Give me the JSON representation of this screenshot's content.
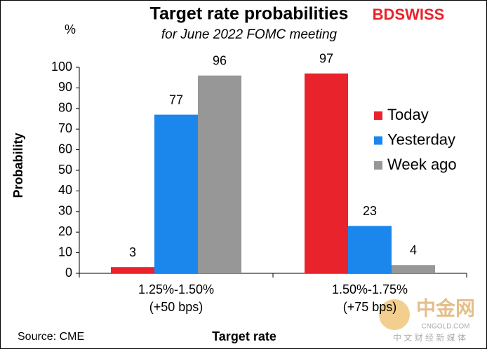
{
  "chart_data": {
    "type": "bar",
    "title": "Target rate probabilities",
    "subtitle": "for June 2022 FOMC meeting",
    "y_unit": "%",
    "y_label": "Probability",
    "x_label": "Target rate",
    "source": "Source: CME",
    "logo": "BDSWISS",
    "watermark": [
      "中金网",
      "CNGOLD.COM",
      "中 文 财 经 新 媒 体"
    ],
    "categories": [
      "1.25%-1.50%\n(+50 bps)",
      "1.50%-1.75%\n(+75 bps)"
    ],
    "series": [
      {
        "name": "Today",
        "color": "#e8232b",
        "values": [
          3,
          97
        ]
      },
      {
        "name": "Yesterday",
        "color": "#1b86ec",
        "values": [
          77,
          23
        ]
      },
      {
        "name": "Week ago",
        "color": "#979797",
        "values": [
          96,
          4
        ]
      }
    ],
    "ylim": [
      0,
      100
    ],
    "yticks": [
      0,
      10,
      20,
      30,
      40,
      50,
      60,
      70,
      80,
      90,
      100
    ],
    "grid": false,
    "legend": "right"
  }
}
